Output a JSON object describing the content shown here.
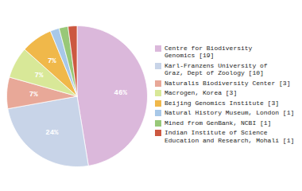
{
  "chart_data": {
    "type": "pie",
    "categories": [
      "Centre for Biodiversity\nGenomics [19]",
      "Karl-Franzens University of\nGraz, Dept of Zoology [10]",
      "Naturalis Biodiversity Center [3]",
      "Macrogen, Korea [3]",
      "Beijing Genomics Institute [3]",
      "Natural History Museum, London [1]",
      "Mined from GenBank, NCBI [1]",
      "Indian Institute of Science\nEducation and Research, Mohali [1]"
    ],
    "values": [
      46,
      24,
      7,
      7,
      7,
      2,
      2,
      2
    ],
    "value_labels": [
      "46%",
      "24%",
      "7%",
      "7%",
      "7%",
      null,
      null,
      null
    ],
    "colors": [
      "#dbb8db",
      "#c8d4e8",
      "#e8a898",
      "#d8e898",
      "#f0b84a",
      "#a8c8e8",
      "#98c878",
      "#cc5840"
    ],
    "data_labels": true,
    "legend": "right"
  }
}
